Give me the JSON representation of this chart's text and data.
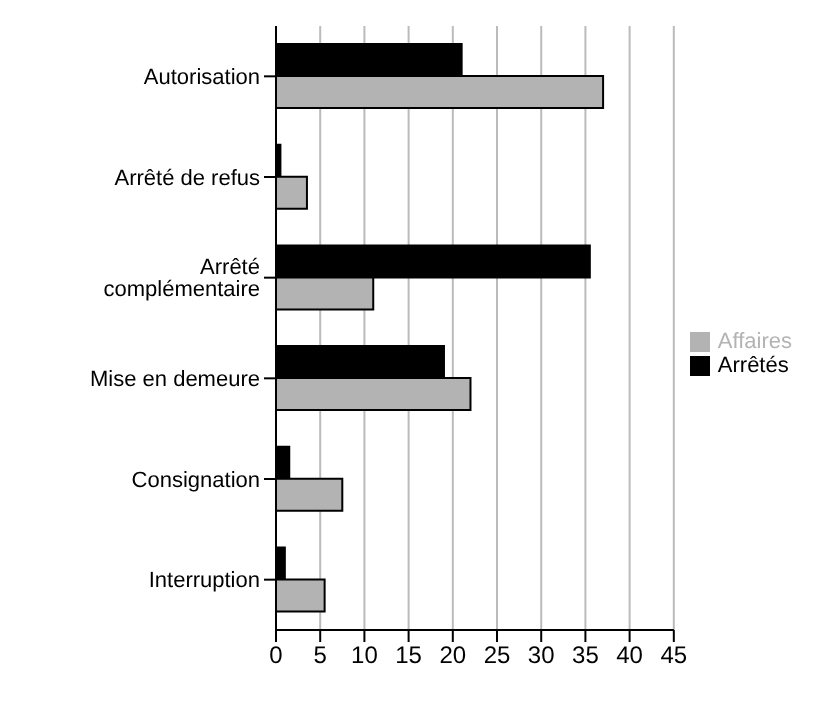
{
  "chart_data": {
    "type": "bar",
    "orientation": "horizontal",
    "categories": [
      "Autorisation",
      "Arrêté de refus",
      "Arrêté complémentaire",
      "Mise en demeure",
      "Consignation",
      "Interruption"
    ],
    "series": [
      {
        "name": "Arrêtés",
        "color": "#000000",
        "values": [
          21,
          0.5,
          35.5,
          19,
          1.5,
          1
        ]
      },
      {
        "name": "Affaires",
        "color": "#b3b3b3",
        "values": [
          37,
          3.5,
          11,
          22,
          7.5,
          5.5
        ]
      }
    ],
    "xlim": [
      0,
      45
    ],
    "xticks": [
      0,
      5,
      10,
      15,
      20,
      25,
      30,
      35,
      40,
      45
    ],
    "grid": "x",
    "legend": "right"
  }
}
